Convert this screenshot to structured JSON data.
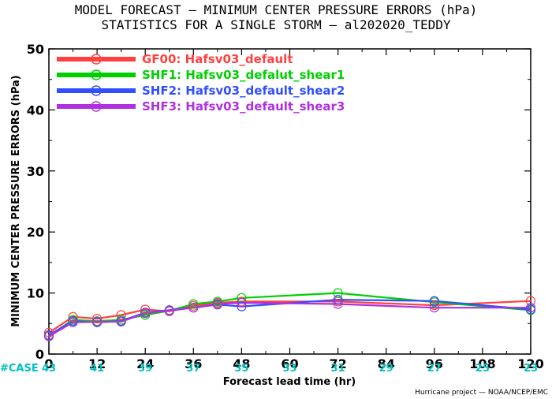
{
  "chart_data": {
    "type": "line",
    "title": "MODEL FORECAST — MINIMUM CENTER PRESSURE ERRORS (hPa)",
    "subtitle": "STATISTICS FOR A SINGLE STORM — al202020_TEDDY",
    "xlabel": "Forecast lead time (hr)",
    "ylabel": "MINIMUM CENTER PRESSURE ERRORS (hPa)",
    "xlim": [
      0,
      120
    ],
    "ylim": [
      0,
      50
    ],
    "x_ticks": [
      "0",
      "12",
      "24",
      "36",
      "48",
      "60",
      "72",
      "84",
      "96",
      "108",
      "120"
    ],
    "y_ticks": [
      "0",
      "10",
      "20",
      "30",
      "40",
      "50"
    ],
    "grid": false,
    "legend_position": "top-left",
    "case_label": "#CASE",
    "case_colors": {
      "label": "#00c0c0",
      "counts": "#00c0c0"
    },
    "cases": [
      {
        "x": 0,
        "n": "43"
      },
      {
        "x": 12,
        "n": "41"
      },
      {
        "x": 24,
        "n": "39"
      },
      {
        "x": 36,
        "n": "37"
      },
      {
        "x": 48,
        "n": "35"
      },
      {
        "x": 60,
        "n": "33"
      },
      {
        "x": 72,
        "n": "31"
      },
      {
        "x": 84,
        "n": "29"
      },
      {
        "x": 96,
        "n": "27"
      },
      {
        "x": 108,
        "n": "25"
      },
      {
        "x": 120,
        "n": "23"
      }
    ],
    "series": [
      {
        "name": "GF00: Hafsv03_default",
        "color": "#ff4040",
        "points": [
          [
            0,
            3.5
          ],
          [
            6,
            6.1
          ],
          [
            12,
            5.8
          ],
          [
            18,
            6.4
          ],
          [
            24,
            7.3
          ],
          [
            30,
            7.0
          ],
          [
            36,
            7.9
          ],
          [
            42,
            8.4
          ],
          [
            48,
            8.6
          ],
          [
            72,
            8.6
          ],
          [
            96,
            8.0
          ],
          [
            120,
            8.7
          ]
        ]
      },
      {
        "name": "SHF1: Hafsv03_defalut_shear1",
        "color": "#00d000",
        "points": [
          [
            0,
            3.0
          ],
          [
            6,
            5.6
          ],
          [
            12,
            5.4
          ],
          [
            18,
            5.6
          ],
          [
            24,
            6.4
          ],
          [
            30,
            7.1
          ],
          [
            36,
            8.2
          ],
          [
            42,
            8.6
          ],
          [
            48,
            9.2
          ],
          [
            72,
            10.0
          ],
          [
            96,
            8.5
          ],
          [
            120,
            7.2
          ]
        ]
      },
      {
        "name": "SHF2: Hafsv03_default_shear2",
        "color": "#3050ff",
        "points": [
          [
            0,
            3.1
          ],
          [
            6,
            5.4
          ],
          [
            12,
            5.2
          ],
          [
            18,
            5.4
          ],
          [
            24,
            6.8
          ],
          [
            30,
            7.2
          ],
          [
            36,
            7.6
          ],
          [
            42,
            8.1
          ],
          [
            48,
            7.8
          ],
          [
            72,
            8.9
          ],
          [
            96,
            8.7
          ],
          [
            120,
            7.3
          ]
        ]
      },
      {
        "name": "SHF3: Hafsv03_default_shear3",
        "color": "#b030e0",
        "points": [
          [
            0,
            2.9
          ],
          [
            6,
            5.2
          ],
          [
            12,
            5.3
          ],
          [
            18,
            5.3
          ],
          [
            24,
            6.7
          ],
          [
            30,
            7.1
          ],
          [
            36,
            7.6
          ],
          [
            42,
            8.2
          ],
          [
            48,
            8.4
          ],
          [
            72,
            8.2
          ],
          [
            96,
            7.6
          ],
          [
            120,
            7.6
          ]
        ]
      }
    ],
    "credit": "Hurricane project — NOAA/NCEP/EMC"
  }
}
